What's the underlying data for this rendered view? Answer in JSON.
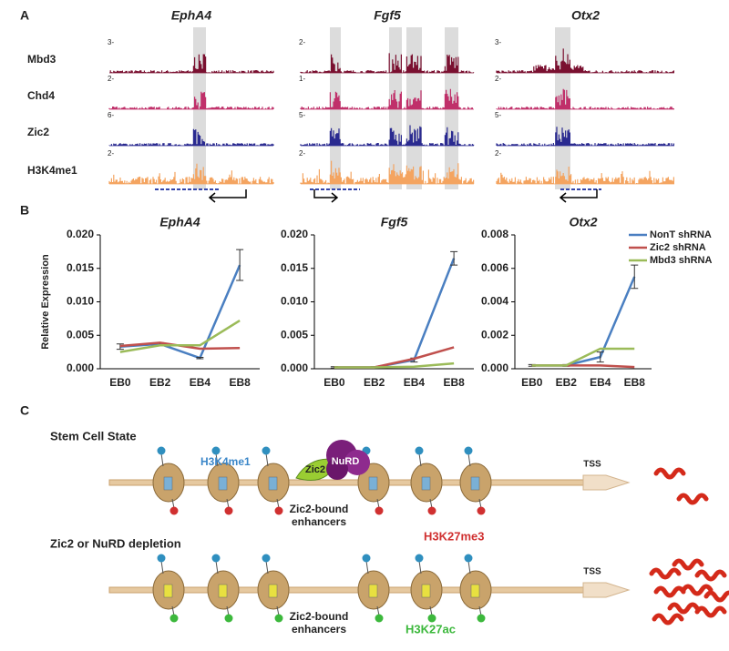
{
  "panel_a": {
    "label": "A",
    "tracks": [
      "Mbd3",
      "Chd4",
      "Zic2",
      "H3K4me1"
    ],
    "genes": [
      {
        "name": "EphA4",
        "scales": [
          "3-",
          "2-",
          "6-",
          "2-"
        ]
      },
      {
        "name": "Fgf5",
        "scales": [
          "2-",
          "1-",
          "5-",
          "2-"
        ]
      },
      {
        "name": "Otx2",
        "scales": [
          "3-",
          "2-",
          "5-",
          "2-"
        ]
      }
    ]
  },
  "panel_b_label": "B",
  "chart_data": [
    {
      "type": "line",
      "title": "EphA4",
      "ylabel": "Relative Expression",
      "categories": [
        "EB0",
        "EB2",
        "EB4",
        "EB8"
      ],
      "ylim": [
        0,
        0.02
      ],
      "yticks": [
        {
          "value": 0,
          "label": "0.000"
        },
        {
          "value": 0.005,
          "label": "0.005"
        },
        {
          "value": 0.01,
          "label": "0.010"
        },
        {
          "value": 0.015,
          "label": "0.015"
        },
        {
          "value": 0.02,
          "label": "0.020"
        }
      ],
      "series": [
        {
          "name": "NonT shRNA",
          "color": "#4a7fc1",
          "values": [
            0.0033,
            0.0037,
            0.0016,
            0.0155
          ],
          "errors": [
            0.0004,
            0.0002,
            0.0001,
            0.0023
          ]
        },
        {
          "name": "Zic2 shRNA",
          "color": "#c0504d",
          "values": [
            0.0034,
            0.0039,
            0.003,
            0.0031
          ]
        },
        {
          "name": "Mbd3 shRNA",
          "color": "#9bbb59",
          "values": [
            0.0025,
            0.0035,
            0.0035,
            0.0072
          ]
        }
      ]
    },
    {
      "type": "line",
      "title": "Fgf5",
      "categories": [
        "EB0",
        "EB2",
        "EB4",
        "EB8"
      ],
      "ylim": [
        0,
        0.02
      ],
      "yticks": [
        {
          "value": 0,
          "label": "0.000"
        },
        {
          "value": 0.005,
          "label": "0.005"
        },
        {
          "value": 0.01,
          "label": "0.010"
        },
        {
          "value": 0.015,
          "label": "0.015"
        },
        {
          "value": 0.02,
          "label": "0.020"
        }
      ],
      "series": [
        {
          "name": "NonT shRNA",
          "color": "#4a7fc1",
          "values": [
            0.0002,
            0.0002,
            0.0013,
            0.0165
          ],
          "errors": [
            0.0001,
            0.0001,
            0.0003,
            0.001
          ]
        },
        {
          "name": "Zic2 shRNA",
          "color": "#c0504d",
          "values": [
            0.0002,
            0.0002,
            0.0015,
            0.0032
          ]
        },
        {
          "name": "Mbd3 shRNA",
          "color": "#9bbb59",
          "values": [
            0.0002,
            0.0002,
            0.0003,
            0.0008
          ]
        }
      ]
    },
    {
      "type": "line",
      "title": "Otx2",
      "categories": [
        "EB0",
        "EB2",
        "EB4",
        "EB8"
      ],
      "ylim": [
        0,
        0.008
      ],
      "yticks": [
        {
          "value": 0,
          "label": "0.000"
        },
        {
          "value": 0.002,
          "label": "0.002"
        },
        {
          "value": 0.004,
          "label": "0.004"
        },
        {
          "value": 0.006,
          "label": "0.006"
        },
        {
          "value": 0.008,
          "label": "0.008"
        }
      ],
      "legend": "top-right",
      "series": [
        {
          "name": "NonT shRNA",
          "color": "#4a7fc1",
          "values": [
            0.0002,
            0.0002,
            0.0007,
            0.0055
          ],
          "errors": [
            5e-05,
            5e-05,
            0.0003,
            0.0007
          ]
        },
        {
          "name": "Zic2 shRNA",
          "color": "#c0504d",
          "values": [
            0.0002,
            0.0002,
            0.0002,
            0.0001
          ]
        },
        {
          "name": "Mbd3 shRNA",
          "color": "#9bbb59",
          "values": [
            0.0002,
            0.0002,
            0.0012,
            0.0012
          ]
        }
      ]
    }
  ],
  "panel_c": {
    "label": "C",
    "top": {
      "title": "Stem Cell State",
      "mark": "H3K4me1",
      "zic2": "Zic2",
      "nurd": "NuRD",
      "tss": "TSS",
      "enhancers": [
        "Zic2-bound",
        "enhancers"
      ],
      "repressive": "H3K27me3"
    },
    "bottom": {
      "title": "Zic2 or NuRD depletion",
      "tss": "TSS",
      "enhancers": [
        "Zic2-bound",
        "enhancers"
      ],
      "active": "H3K27ac"
    }
  }
}
